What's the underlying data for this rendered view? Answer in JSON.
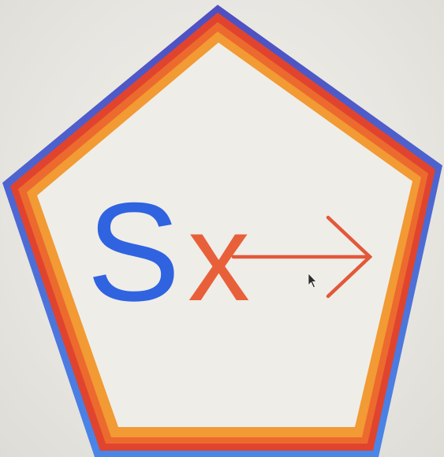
{
  "logo": {
    "letter_s": "S",
    "letter_x": "x",
    "colors": {
      "background": "#ebe9e4",
      "inner_fill": "#efede8",
      "ring_blue_top": "#4f4fc0",
      "ring_blue_bottom": "#4a86e8",
      "ring_red": "#e0442e",
      "ring_orange": "#ec6a2e",
      "ring_amber": "#f29a33",
      "letter_s": "#2f63e0",
      "letter_x": "#e8603a",
      "arrow": "#e2583a"
    },
    "icons": {
      "arrow": "right-arrow-icon",
      "cursor": "mouse-pointer-icon"
    }
  }
}
